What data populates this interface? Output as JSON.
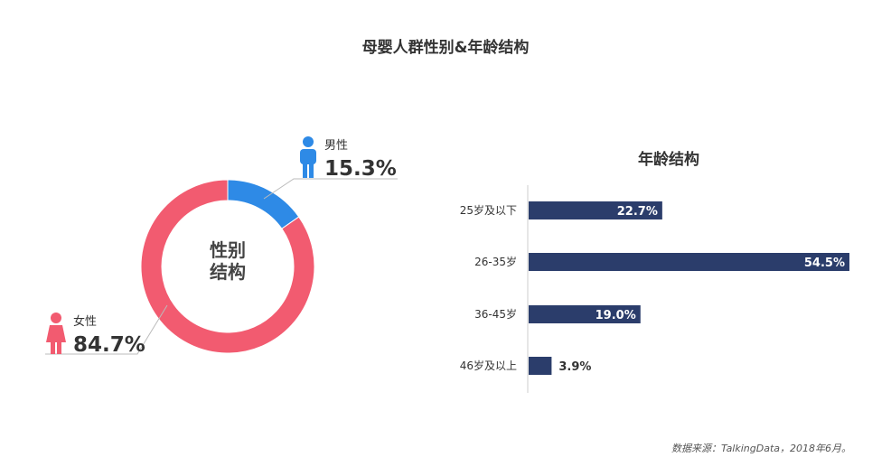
{
  "title": "母婴人群性别&年龄结构",
  "source": "数据来源：TalkingData，2018年6月。",
  "colors": {
    "male": "#2e8ae6",
    "female": "#f25b70",
    "bar": "#2b3d6b"
  },
  "chart_data": [
    {
      "type": "pie",
      "center_label": [
        "性别",
        "结构"
      ],
      "labels": [
        "男性",
        "女性"
      ],
      "values": [
        15.3,
        84.7
      ],
      "display": [
        "15.3%",
        "84.7%"
      ],
      "icons": [
        "male-person-icon",
        "female-person-icon"
      ]
    },
    {
      "type": "bar",
      "orientation": "horizontal",
      "title": "年龄结构",
      "categories": [
        "25岁及以下",
        "26-35岁",
        "36-45岁",
        "46岁及以上"
      ],
      "values": [
        22.7,
        54.5,
        19.0,
        3.9
      ],
      "data_labels": [
        "22.7%",
        "54.5%",
        "19.0%",
        "3.9%"
      ],
      "xlim": [
        0,
        54.5
      ],
      "grid": false,
      "legend": "none"
    }
  ]
}
